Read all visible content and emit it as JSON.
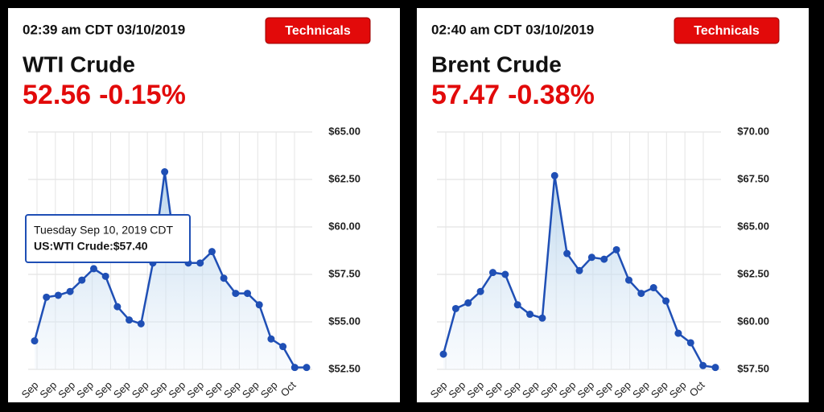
{
  "chart_data": [
    {
      "type": "line",
      "timestamp": "02:39 am CDT 03/10/2019",
      "button": "Technicals",
      "title": "WTI Crude",
      "price": "52.56",
      "change": "-0.15%",
      "color": "#1f4fb5",
      "x_labels": [
        "Sep",
        "Sep",
        "Sep",
        "Sep",
        "Sep",
        "Sep",
        "Sep",
        "Sep",
        "Sep",
        "Sep",
        "Sep",
        "Sep",
        "Sep",
        "Sep",
        "Oct"
      ],
      "values": [
        54.0,
        56.3,
        56.4,
        56.6,
        57.2,
        57.8,
        57.4,
        55.8,
        55.1,
        54.9,
        58.1,
        62.9,
        58.3,
        58.1,
        58.1,
        58.7,
        57.3,
        56.5,
        56.5,
        55.9,
        54.1,
        53.7,
        52.6,
        52.6
      ],
      "ylim": [
        52.5,
        65
      ],
      "yticks": [
        {
          "value": 52.5,
          "label": "$52.50"
        },
        {
          "value": 55,
          "label": "$55.00"
        },
        {
          "value": 57.5,
          "label": "$57.50"
        },
        {
          "value": 60,
          "label": "$60.00"
        },
        {
          "value": 62.5,
          "label": "$62.50"
        },
        {
          "value": 65,
          "label": "$65.00"
        }
      ],
      "grid": true,
      "tooltip": {
        "title": "Tuesday Sep 10, 2019 CDT",
        "text": "US:WTI Crude:$57.40"
      }
    },
    {
      "type": "line",
      "timestamp": "02:40 am CDT 03/10/2019",
      "button": "Technicals",
      "title": "Brent Crude",
      "price": "57.47",
      "change": "-0.38%",
      "color": "#1f4fb5",
      "x_labels": [
        "Sep",
        "Sep",
        "Sep",
        "Sep",
        "Sep",
        "Sep",
        "Sep",
        "Sep",
        "Sep",
        "Sep",
        "Sep",
        "Sep",
        "Sep",
        "Sep",
        "Oct"
      ],
      "values": [
        58.3,
        60.7,
        61.0,
        61.6,
        62.6,
        62.5,
        60.9,
        60.4,
        60.2,
        67.7,
        63.6,
        62.7,
        63.4,
        63.3,
        63.8,
        62.2,
        61.5,
        61.8,
        61.1,
        59.4,
        58.9,
        57.7,
        57.6
      ],
      "ylim": [
        57.5,
        70
      ],
      "yticks": [
        {
          "value": 57.5,
          "label": "$57.50"
        },
        {
          "value": 60,
          "label": "$60.00"
        },
        {
          "value": 62.5,
          "label": "$62.50"
        },
        {
          "value": 65,
          "label": "$65.00"
        },
        {
          "value": 67.5,
          "label": "$67.50"
        },
        {
          "value": 70,
          "label": "$70.00"
        }
      ],
      "grid": true
    }
  ]
}
